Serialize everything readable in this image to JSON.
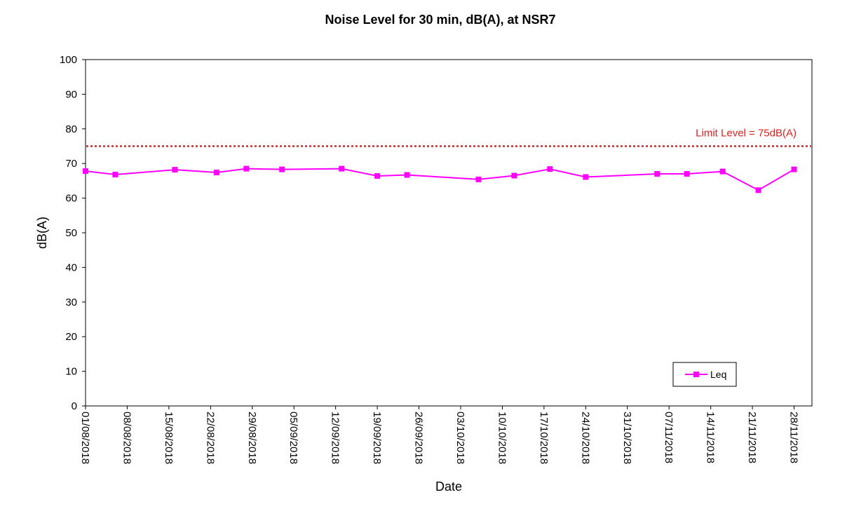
{
  "chart_data": {
    "type": "line",
    "title": "Noise Level for 30 min, dB(A), at NSR7",
    "xlabel": "Date",
    "ylabel": "dB(A)",
    "ylim": [
      0,
      100
    ],
    "yticks": [
      0,
      10,
      20,
      30,
      40,
      50,
      60,
      70,
      80,
      90,
      100
    ],
    "xlim": [
      "2018-08-01",
      "2018-12-01"
    ],
    "xtick_labels": [
      "01/08/2018",
      "08/08/2018",
      "15/08/2018",
      "22/08/2018",
      "29/08/2018",
      "05/09/2018",
      "12/09/2018",
      "19/09/2018",
      "26/09/2018",
      "03/10/2018",
      "10/10/2018",
      "17/10/2018",
      "24/10/2018",
      "31/10/2018",
      "07/11/2018",
      "14/11/2018",
      "21/11/2018",
      "28/11/2018"
    ],
    "grid": false,
    "legend_position": "bottom-right",
    "series": [
      {
        "name": "Leq",
        "color": "#FF00FF",
        "marker": "square",
        "x": [
          "2018-08-01",
          "2018-08-06",
          "2018-08-16",
          "2018-08-23",
          "2018-08-28",
          "2018-09-03",
          "2018-09-13",
          "2018-09-19",
          "2018-09-24",
          "2018-10-06",
          "2018-10-12",
          "2018-10-18",
          "2018-10-24",
          "2018-11-05",
          "2018-11-10",
          "2018-11-16",
          "2018-11-22",
          "2018-11-28"
        ],
        "values": [
          67.8,
          66.8,
          68.2,
          67.4,
          68.5,
          68.3,
          68.5,
          66.4,
          66.7,
          65.4,
          66.5,
          68.4,
          66.1,
          67.0,
          67.0,
          67.7,
          62.3,
          68.3
        ]
      }
    ],
    "reference_lines": [
      {
        "label": "Limit Level = 75dB(A)",
        "value": 75,
        "color": "#E0201E",
        "style": "dotted"
      }
    ]
  }
}
